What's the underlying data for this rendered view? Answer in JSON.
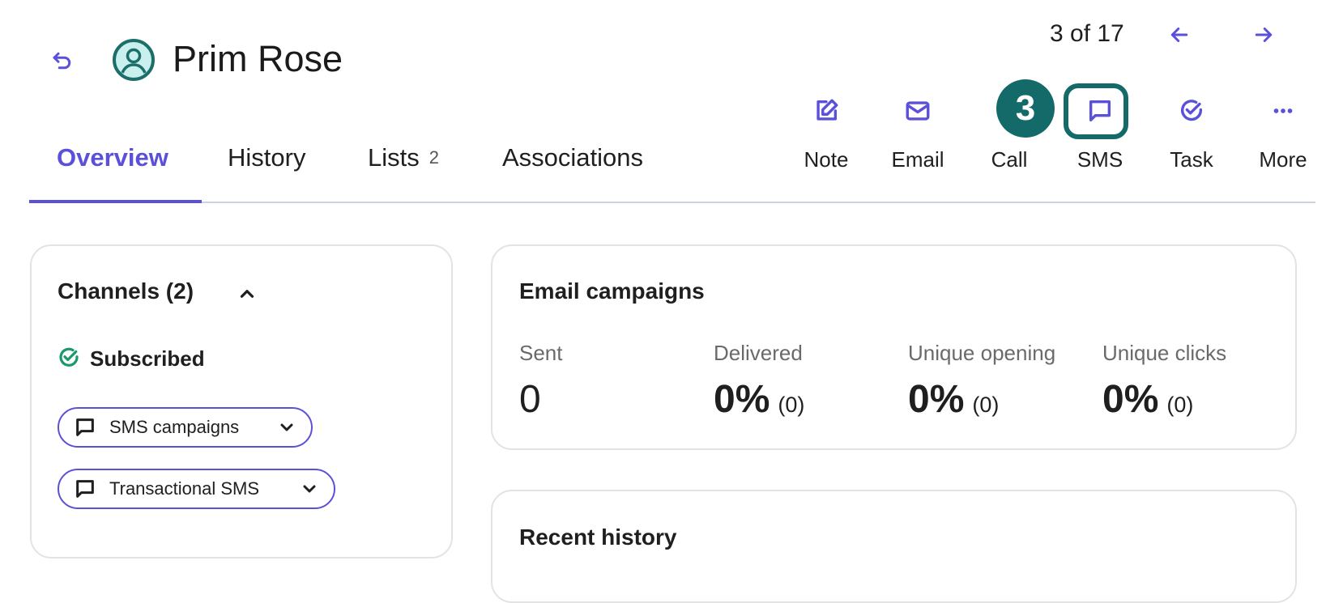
{
  "header": {
    "contact_name": "Prim Rose",
    "pager": "3 of 17",
    "icons": {
      "back": "undo-arrow-icon",
      "avatar": "user-circle-icon",
      "prev": "arrow-left-icon",
      "next": "arrow-right-icon"
    }
  },
  "actions": [
    {
      "label": "Note",
      "icon": "edit-icon"
    },
    {
      "label": "Email",
      "icon": "mail-icon"
    },
    {
      "label": "Call",
      "icon": "phone-icon"
    },
    {
      "label": "SMS",
      "icon": "chat-bubble-icon"
    },
    {
      "label": "Task",
      "icon": "check-circle-icon"
    },
    {
      "label": "More",
      "icon": "more-horizontal-icon"
    }
  ],
  "overlay": {
    "step_badge": "3"
  },
  "tabs": [
    {
      "label": "Overview",
      "active": true
    },
    {
      "label": "History"
    },
    {
      "label": "Lists",
      "count": "2"
    },
    {
      "label": "Associations"
    }
  ],
  "channels": {
    "title": "Channels (2)",
    "status": "Subscribed",
    "items": [
      {
        "label": "SMS campaigns"
      },
      {
        "label": "Transactional SMS"
      }
    ]
  },
  "email_campaigns": {
    "title": "Email campaigns",
    "stats": [
      {
        "label": "Sent",
        "value": "0",
        "sub": ""
      },
      {
        "label": "Delivered",
        "value": "0%",
        "sub": "(0)"
      },
      {
        "label": "Unique opening",
        "value": "0%",
        "sub": "(0)"
      },
      {
        "label": "Unique clicks",
        "value": "0%",
        "sub": "(0)"
      }
    ]
  },
  "recent_history": {
    "title": "Recent history"
  },
  "colors": {
    "accent": "#5b50d9",
    "badge": "#136a68",
    "success": "#1a9a6c"
  }
}
